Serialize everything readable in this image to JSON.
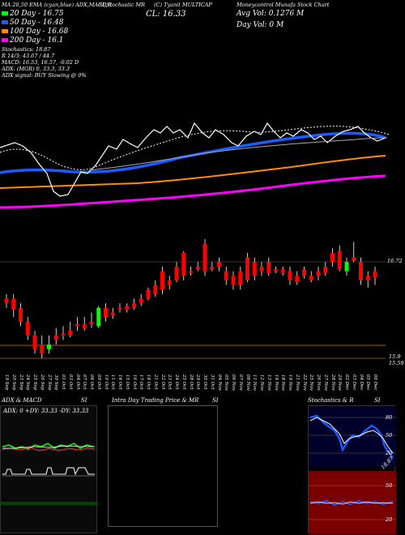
{
  "header": {
    "ma_labels": "MA 20,50 EMA (cyan,blue) ADX,MACD,R",
    "stoch_label": "SI,Stochastic MR",
    "symbol_label": "(C) Tyanit MULTICAP",
    "moneycontrol_label": "Moneycontrol Munafa Stock Chart",
    "close": "CL: 16.33",
    "avg_vol": "Avg Vol: 0.1276 M",
    "day_vol": "Day Vol: 0   M",
    "legend": [
      {
        "label": "20 Day - 16.75",
        "color": "#ffffff"
      },
      {
        "label": "50 Day - 16.48",
        "color": "#ffffff"
      },
      {
        "label": "100 Day - 16.68",
        "color": "#ff8c00"
      },
      {
        "label": "200 Day - 16.1",
        "color": "#ff00ff"
      }
    ],
    "stochastics": "Stochastics: 18.87",
    "r_line": "R            14/3: 43.67 / 44.7",
    "macd": "MACD: 16.53, 16.57, -0.02  D",
    "adx": "ADX:                              (MGR) 0, 33.3, 33.3",
    "adx_signal": "ADX  signal:                              BUY Slowing @ 0%"
  },
  "price_axis": {
    "top": "16.72",
    "mid": "15.9",
    "low": "15.59"
  },
  "dates": [
    "19 Sep",
    "20 Sep",
    "23 Sep",
    "24 Sep",
    "25 Sep",
    "26 Sep",
    "27 Sep",
    "30 Sep",
    "01 Oct",
    "03 Oct",
    "04 Oct",
    "07 Oct",
    "08 Oct",
    "09 Oct",
    "10 Oct",
    "11 Oct",
    "14 Oct",
    "15 Oct",
    "16 Oct",
    "17 Oct",
    "18 Oct",
    "21 Oct",
    "22 Oct",
    "23 Oct",
    "24 Oct",
    "25 Oct",
    "28 Oct",
    "29 Oct",
    "30 Oct",
    "31 Oct",
    "04 Nov",
    "05 Nov",
    "06 Nov",
    "07 Nov",
    "08 Nov",
    "11 Nov",
    "12 Nov",
    "13 Nov",
    "14 Nov",
    "18 Nov",
    "19 Nov",
    "21 Nov",
    "22 Nov",
    "25 Nov",
    "26 Nov",
    "27 Nov",
    "28 Nov",
    "29 Nov",
    "02 Dec",
    "03 Dec",
    "04 Dec",
    "05 Dec",
    "06 Dec"
  ],
  "candles": [
    {
      "o": 16.1,
      "c": 16.05,
      "h": 16.15,
      "l": 16.0,
      "col": "red"
    },
    {
      "o": 16.1,
      "c": 15.98,
      "h": 16.15,
      "l": 15.9,
      "col": "red"
    },
    {
      "o": 16.0,
      "c": 15.85,
      "h": 16.05,
      "l": 15.8,
      "col": "red"
    },
    {
      "o": 15.85,
      "c": 15.7,
      "h": 15.9,
      "l": 15.65,
      "col": "red"
    },
    {
      "o": 15.7,
      "c": 15.55,
      "h": 15.75,
      "l": 15.5,
      "col": "red"
    },
    {
      "o": 15.6,
      "c": 15.5,
      "h": 15.7,
      "l": 15.45,
      "col": "red"
    },
    {
      "o": 15.55,
      "c": 15.6,
      "h": 15.7,
      "l": 15.5,
      "col": "green"
    },
    {
      "o": 15.7,
      "c": 15.65,
      "h": 15.78,
      "l": 15.6,
      "col": "red"
    },
    {
      "o": 15.72,
      "c": 15.7,
      "h": 15.8,
      "l": 15.65,
      "col": "red"
    },
    {
      "o": 15.75,
      "c": 15.7,
      "h": 15.85,
      "l": 15.68,
      "col": "red"
    },
    {
      "o": 15.82,
      "c": 15.8,
      "h": 15.9,
      "l": 15.75,
      "col": "red"
    },
    {
      "o": 15.82,
      "c": 15.78,
      "h": 15.9,
      "l": 15.75,
      "col": "red"
    },
    {
      "o": 15.85,
      "c": 15.82,
      "h": 15.95,
      "l": 15.78,
      "col": "red"
    },
    {
      "o": 15.8,
      "c": 16.0,
      "h": 16.02,
      "l": 15.78,
      "col": "green"
    },
    {
      "o": 16.0,
      "c": 15.9,
      "h": 16.05,
      "l": 15.85,
      "col": "red"
    },
    {
      "o": 15.95,
      "c": 15.92,
      "h": 16.0,
      "l": 15.88,
      "col": "red"
    },
    {
      "o": 16.0,
      "c": 15.98,
      "h": 16.05,
      "l": 15.95,
      "col": "red"
    },
    {
      "o": 16.02,
      "c": 15.98,
      "h": 16.05,
      "l": 15.95,
      "col": "red"
    },
    {
      "o": 16.05,
      "c": 16.0,
      "h": 16.1,
      "l": 15.98,
      "col": "red"
    },
    {
      "o": 16.1,
      "c": 16.05,
      "h": 16.15,
      "l": 16.02,
      "col": "red"
    },
    {
      "o": 16.2,
      "c": 16.1,
      "h": 16.22,
      "l": 16.08,
      "col": "red"
    },
    {
      "o": 16.25,
      "c": 16.15,
      "h": 16.3,
      "l": 16.12,
      "col": "red"
    },
    {
      "o": 16.4,
      "c": 16.2,
      "h": 16.45,
      "l": 16.15,
      "col": "red"
    },
    {
      "o": 16.3,
      "c": 16.25,
      "h": 16.35,
      "l": 16.2,
      "col": "red"
    },
    {
      "o": 16.45,
      "c": 16.3,
      "h": 16.5,
      "l": 16.28,
      "col": "red"
    },
    {
      "o": 16.6,
      "c": 16.35,
      "h": 16.62,
      "l": 16.3,
      "col": "red"
    },
    {
      "o": 16.4,
      "c": 16.38,
      "h": 16.45,
      "l": 16.35,
      "col": "red"
    },
    {
      "o": 16.45,
      "c": 16.42,
      "h": 16.5,
      "l": 16.4,
      "col": "red"
    },
    {
      "o": 16.7,
      "c": 16.4,
      "h": 16.75,
      "l": 16.35,
      "col": "red"
    },
    {
      "o": 16.45,
      "c": 16.42,
      "h": 16.5,
      "l": 16.4,
      "col": "red"
    },
    {
      "o": 16.5,
      "c": 16.45,
      "h": 16.55,
      "l": 16.4,
      "col": "red"
    },
    {
      "o": 16.4,
      "c": 16.3,
      "h": 16.45,
      "l": 16.25,
      "col": "red"
    },
    {
      "o": 16.35,
      "c": 16.25,
      "h": 16.4,
      "l": 16.2,
      "col": "red"
    },
    {
      "o": 16.4,
      "c": 16.25,
      "h": 16.45,
      "l": 16.2,
      "col": "red"
    },
    {
      "o": 16.55,
      "c": 16.3,
      "h": 16.6,
      "l": 16.28,
      "col": "red"
    },
    {
      "o": 16.5,
      "c": 16.35,
      "h": 16.55,
      "l": 16.3,
      "col": "red"
    },
    {
      "o": 16.45,
      "c": 16.4,
      "h": 16.5,
      "l": 16.35,
      "col": "red"
    },
    {
      "o": 16.5,
      "c": 16.38,
      "h": 16.55,
      "l": 16.35,
      "col": "red"
    },
    {
      "o": 16.42,
      "c": 16.4,
      "h": 16.45,
      "l": 16.38,
      "col": "red"
    },
    {
      "o": 16.42,
      "c": 16.38,
      "h": 16.45,
      "l": 16.35,
      "col": "red"
    },
    {
      "o": 16.4,
      "c": 16.3,
      "h": 16.45,
      "l": 16.25,
      "col": "red"
    },
    {
      "o": 16.35,
      "c": 16.28,
      "h": 16.4,
      "l": 16.25,
      "col": "red"
    },
    {
      "o": 16.42,
      "c": 16.35,
      "h": 16.45,
      "l": 16.32,
      "col": "red"
    },
    {
      "o": 16.35,
      "c": 16.3,
      "h": 16.4,
      "l": 16.28,
      "col": "red"
    },
    {
      "o": 16.4,
      "c": 16.35,
      "h": 16.45,
      "l": 16.3,
      "col": "red"
    },
    {
      "o": 16.45,
      "c": 16.38,
      "h": 16.5,
      "l": 16.35,
      "col": "red"
    },
    {
      "o": 16.6,
      "c": 16.5,
      "h": 16.65,
      "l": 16.45,
      "col": "red"
    },
    {
      "o": 16.62,
      "c": 16.42,
      "h": 16.68,
      "l": 16.4,
      "col": "red"
    },
    {
      "o": 16.4,
      "c": 16.5,
      "h": 16.55,
      "l": 16.35,
      "col": "green"
    },
    {
      "o": 16.55,
      "c": 16.52,
      "h": 16.72,
      "l": 16.5,
      "col": "red"
    },
    {
      "o": 16.5,
      "c": 16.3,
      "h": 16.55,
      "l": 16.25,
      "col": "red"
    },
    {
      "o": 16.35,
      "c": 16.3,
      "h": 16.4,
      "l": 16.22,
      "col": "red"
    },
    {
      "o": 16.4,
      "c": 16.33,
      "h": 16.45,
      "l": 16.25,
      "col": "red"
    }
  ],
  "panels": {
    "adx": {
      "title": "ADX  & MACD",
      "si": "SI",
      "readout": "ADX: 0  +DY: 33.33  -DY: 33.33"
    },
    "intraday": {
      "title": "Intra  Day Trading Price  & MR",
      "si": "SI"
    },
    "stoch": {
      "title": "Stochastics & R",
      "si": "SI",
      "levels": [
        "80",
        "50",
        "20"
      ],
      "corner": "18.87",
      "rsi_levels": [
        "50",
        "20"
      ]
    }
  },
  "colors": {
    "red": "#ff0000",
    "green": "#00ff00",
    "magenta": "#ff00ff",
    "orange": "#ff8c00",
    "blue": "#1e5bff"
  }
}
